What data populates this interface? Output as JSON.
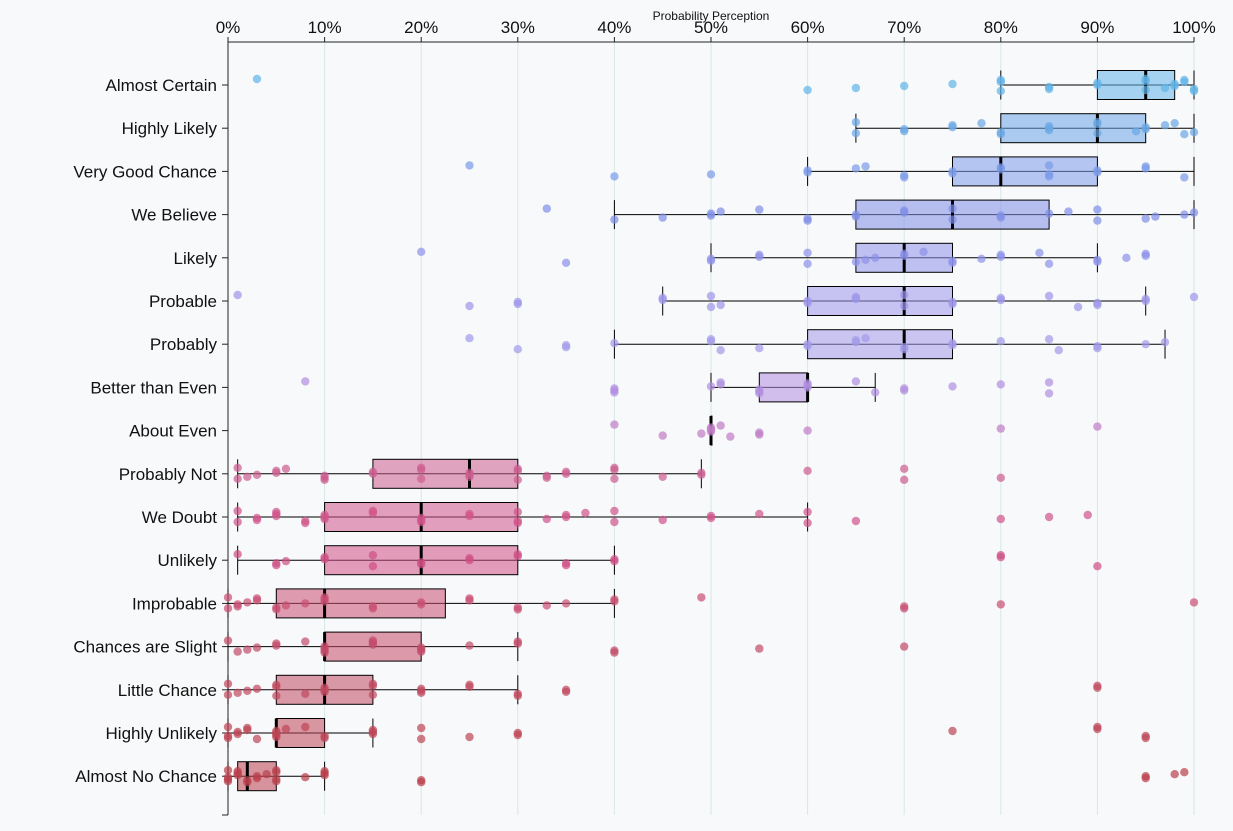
{
  "chart_data": {
    "type": "box",
    "title": "Probability Perception",
    "xlim": [
      0,
      100
    ],
    "x_ticks": [
      "0%",
      "10%",
      "20%",
      "30%",
      "40%",
      "50%",
      "60%",
      "70%",
      "80%",
      "90%",
      "100%"
    ],
    "grid": "vertical",
    "categories": [
      {
        "label": "Almost Certain",
        "color": "#5fb3e8",
        "q1": 90,
        "median": 95,
        "q3": 98,
        "wlo": 80,
        "whi": 100,
        "points": [
          3,
          60,
          65,
          70,
          75,
          80,
          80,
          80,
          85,
          85,
          90,
          90,
          95,
          95,
          95,
          97,
          98,
          98,
          99,
          99,
          100,
          100
        ]
      },
      {
        "label": "Highly Likely",
        "color": "#6aa6e6",
        "q1": 80,
        "median": 90,
        "q3": 95,
        "wlo": 65,
        "whi": 100,
        "points": [
          65,
          65,
          70,
          70,
          75,
          75,
          78,
          80,
          80,
          85,
          85,
          85,
          90,
          90,
          90,
          94,
          95,
          95,
          97,
          98,
          99,
          100
        ]
      },
      {
        "label": "Very Good Chance",
        "color": "#7a9ae8",
        "q1": 75,
        "median": 80,
        "q3": 90,
        "wlo": 60,
        "whi": 100,
        "points": [
          25,
          40,
          50,
          60,
          60,
          65,
          66,
          70,
          70,
          75,
          75,
          80,
          80,
          85,
          85,
          85,
          90,
          90,
          95,
          95,
          99
        ]
      },
      {
        "label": "We Believe",
        "color": "#7f8ee6",
        "q1": 65,
        "median": 75,
        "q3": 85,
        "wlo": 40,
        "whi": 100,
        "points": [
          33,
          40,
          45,
          50,
          50,
          51,
          55,
          60,
          60,
          65,
          65,
          70,
          70,
          75,
          75,
          80,
          80,
          85,
          87,
          90,
          90,
          95,
          96,
          99,
          100
        ]
      },
      {
        "label": "Likely",
        "color": "#8d92ea",
        "q1": 65,
        "median": 70,
        "q3": 75,
        "wlo": 50,
        "whi": 90,
        "points": [
          20,
          35,
          50,
          50,
          55,
          55,
          60,
          60,
          65,
          66,
          67,
          70,
          70,
          72,
          75,
          75,
          78,
          80,
          80,
          84,
          85,
          90,
          90,
          93,
          95,
          95
        ]
      },
      {
        "label": "Probable",
        "color": "#9c96ea",
        "q1": 60,
        "median": 70,
        "q3": 75,
        "wlo": 45,
        "whi": 95,
        "points": [
          1,
          25,
          30,
          30,
          45,
          45,
          50,
          50,
          51,
          60,
          60,
          65,
          65,
          70,
          70,
          75,
          75,
          80,
          80,
          85,
          88,
          90,
          90,
          95,
          95,
          100
        ]
      },
      {
        "label": "Probably",
        "color": "#a39ae8",
        "q1": 60,
        "median": 70,
        "q3": 75,
        "wlo": 40,
        "whi": 97,
        "points": [
          25,
          30,
          35,
          35,
          40,
          50,
          50,
          51,
          55,
          60,
          60,
          65,
          65,
          66,
          70,
          70,
          75,
          75,
          80,
          85,
          86,
          90,
          90,
          95,
          97
        ]
      },
      {
        "label": "Better than Even",
        "color": "#b08ee0",
        "q1": 55,
        "median": 60,
        "q3": 60,
        "wlo": 50,
        "whi": 67,
        "points": [
          8,
          40,
          40,
          40,
          50,
          51,
          51,
          55,
          55,
          55,
          60,
          60,
          60,
          65,
          67,
          70,
          70,
          75,
          80,
          85,
          85
        ]
      },
      {
        "label": "About Even",
        "color": "#c07cc6",
        "q1": 50,
        "median": 50,
        "q3": 50,
        "wlo": 50,
        "whi": 50,
        "points": [
          40,
          45,
          49,
          50,
          50,
          50,
          51,
          52,
          55,
          55,
          60,
          80,
          90
        ]
      },
      {
        "label": "Probably Not",
        "color": "#cc5d8e",
        "q1": 15,
        "median": 25,
        "q3": 30,
        "wlo": 1,
        "whi": 49,
        "points": [
          1,
          1,
          2,
          3,
          5,
          5,
          6,
          10,
          10,
          10,
          15,
          15,
          20,
          20,
          20,
          25,
          25,
          25,
          30,
          30,
          30,
          33,
          33,
          35,
          35,
          40,
          40,
          40,
          45,
          49,
          49,
          60,
          70,
          70,
          80
        ]
      },
      {
        "label": "We Doubt",
        "color": "#d0548a",
        "q1": 10,
        "median": 20,
        "q3": 30,
        "wlo": 1,
        "whi": 60,
        "points": [
          1,
          1,
          3,
          3,
          5,
          5,
          5,
          8,
          8,
          10,
          10,
          10,
          15,
          15,
          20,
          20,
          20,
          25,
          25,
          30,
          30,
          30,
          33,
          35,
          35,
          37,
          40,
          40,
          45,
          50,
          50,
          55,
          60,
          60,
          65,
          80,
          85,
          89
        ]
      },
      {
        "label": "Unlikely",
        "color": "#cf4f84",
        "q1": 10,
        "median": 20,
        "q3": 30,
        "wlo": 1,
        "whi": 40,
        "points": [
          1,
          5,
          5,
          6,
          10,
          10,
          15,
          15,
          20,
          20,
          25,
          25,
          30,
          30,
          35,
          35,
          40,
          40,
          80,
          80,
          90
        ]
      },
      {
        "label": "Improbable",
        "color": "#c94f72",
        "q1": 5,
        "median": 10,
        "q3": 22.5,
        "wlo": 0,
        "whi": 40,
        "points": [
          0,
          0,
          1,
          1,
          2,
          3,
          3,
          5,
          5,
          6,
          8,
          10,
          10,
          10,
          15,
          15,
          20,
          20,
          25,
          25,
          30,
          30,
          33,
          35,
          40,
          40,
          49,
          70,
          70,
          80,
          100
        ]
      },
      {
        "label": "Chances are Slight",
        "color": "#c24a68",
        "q1": 10,
        "median": 10,
        "q3": 20,
        "wlo": 0,
        "whi": 30,
        "points": [
          0,
          1,
          2,
          3,
          5,
          5,
          8,
          10,
          10,
          10,
          10,
          15,
          15,
          15,
          20,
          20,
          20,
          25,
          30,
          30,
          40,
          40,
          55,
          70
        ]
      },
      {
        "label": "Little Chance",
        "color": "#c0485f",
        "q1": 5,
        "median": 10,
        "q3": 15,
        "wlo": 0,
        "whi": 30,
        "points": [
          0,
          0,
          1,
          2,
          3,
          5,
          5,
          5,
          8,
          10,
          10,
          10,
          15,
          15,
          15,
          20,
          20,
          20,
          25,
          25,
          30,
          30,
          35,
          35,
          90,
          90
        ]
      },
      {
        "label": "Highly Unlikely",
        "color": "#bd4556",
        "q1": 5,
        "median": 5,
        "q3": 10,
        "wlo": 0,
        "whi": 15,
        "points": [
          0,
          0,
          0,
          1,
          1,
          2,
          2,
          3,
          5,
          5,
          5,
          5,
          6,
          8,
          10,
          10,
          15,
          15,
          15,
          20,
          20,
          25,
          30,
          30,
          75,
          90,
          90,
          95,
          95
        ]
      },
      {
        "label": "Almost No Chance",
        "color": "#b93f4c",
        "q1": 1,
        "median": 2,
        "q3": 5,
        "wlo": 0,
        "whi": 10,
        "points": [
          0,
          0,
          0,
          0,
          1,
          1,
          1,
          2,
          2,
          3,
          3,
          4,
          5,
          5,
          5,
          5,
          8,
          10,
          10,
          10,
          20,
          20,
          95,
          95,
          98,
          99
        ]
      }
    ]
  }
}
